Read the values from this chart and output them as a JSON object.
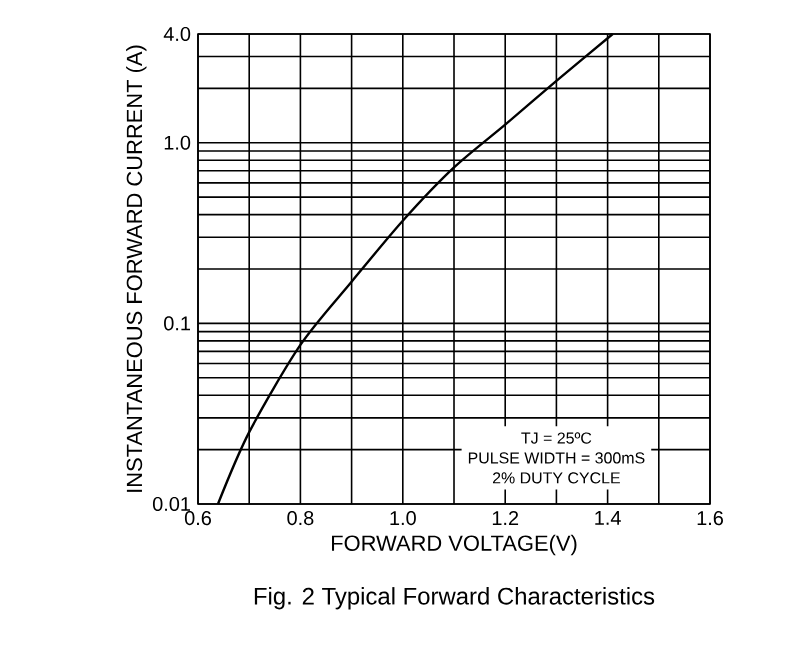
{
  "chart_data": {
    "type": "line",
    "title": "Fig. 2  Typical Forward Characteristics",
    "xlabel": "FORWARD VOLTAGE(V)",
    "ylabel": "INSTANTANEOUS FORWARD CURRENT (A)",
    "x": [
      0.639,
      0.7,
      0.8,
      0.9,
      1.0,
      1.1,
      1.2,
      1.3,
      1.41
    ],
    "series": [
      {
        "color": "#000000",
        "values": [
          0.01,
          0.025,
          0.076,
          0.17,
          0.37,
          0.73,
          1.26,
          2.2,
          4.0
        ]
      }
    ],
    "log": "y",
    "grid": true,
    "marker": "none",
    "line_style": "solid",
    "xlim": [
      0.6,
      1.6
    ],
    "ylim": [
      0.01,
      4.0
    ],
    "xticks": [
      0.6,
      {
        "value": 0.7,
        "label": null
      },
      0.8,
      {
        "value": 0.9,
        "label": null
      },
      {
        "value": 1.0,
        "label": "1.0"
      },
      {
        "value": 1.1,
        "label": null
      },
      1.2,
      {
        "value": 1.3,
        "label": null
      },
      1.4,
      {
        "value": 1.5,
        "label": null
      },
      1.6
    ],
    "yticks": [
      0.01,
      0.1,
      {
        "value": 1.0,
        "label": "1.0"
      },
      {
        "value": 4.0,
        "label": "4.0"
      }
    ],
    "annotations": [
      "TJ = 25ºC",
      "PULSE WIDTH = 300mS",
      "2% DUTY CYCLE"
    ]
  }
}
